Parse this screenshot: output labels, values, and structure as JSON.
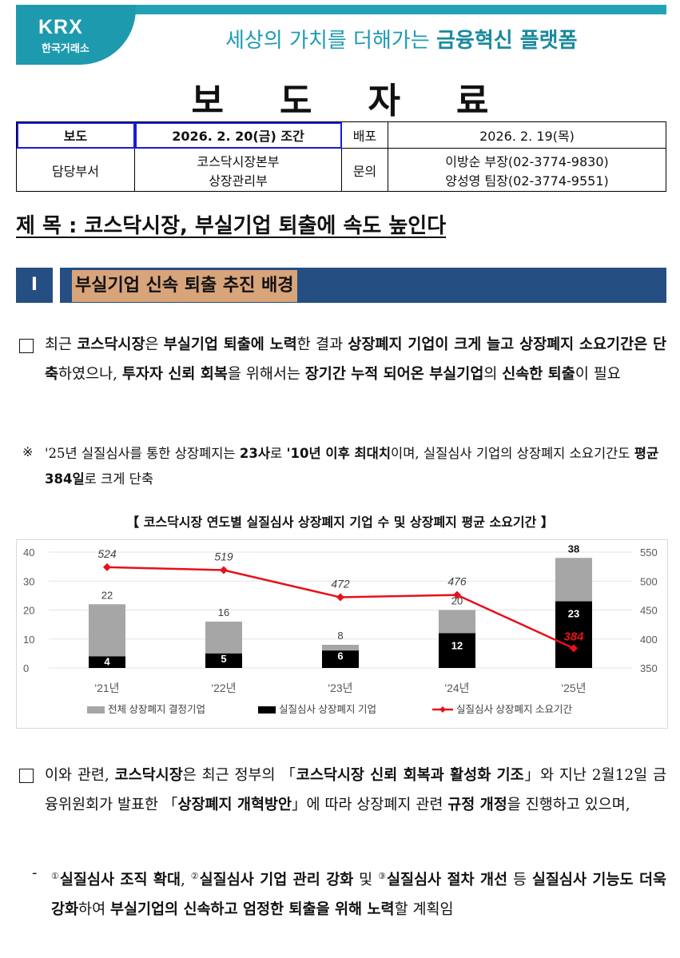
{
  "header": {
    "logo_main": "KRX",
    "logo_sub": "한국거래소",
    "slogan_plain": "세상의 가치를 더해가는 ",
    "slogan_bold": "금융혁신 플랫폼",
    "doc_title": "보도자료"
  },
  "info": {
    "release_label": "보도",
    "release_value": "2026. 2. 20(금) 조간",
    "dist_label": "배포",
    "dist_value": "2026. 2. 19(목)",
    "dept_label": "담당부서",
    "dept_line1": "코스닥시장본부",
    "dept_line2": "상장관리부",
    "contact_label": "문의",
    "contact_line1": "이방순 부장(02-3774-9830)",
    "contact_line2": "양성영 팀장(02-3774-9551)"
  },
  "main_title": "제 목 : 코스닥시장, 부실기업 퇴출에 속도 높인다",
  "section": {
    "num": "I",
    "label": "부실기업 신속 퇴출 추진 배경"
  },
  "para1": {
    "s1": "최근 ",
    "b1": "코스닥시장",
    "s2": "은 ",
    "b2": "부실기업 퇴출에 노력",
    "s3": "한 결과 ",
    "b3": "상장폐지 기업이 크게 늘고 상장폐지 소요기간은 단축",
    "s4": "하였으나, ",
    "b4": "투자자 신뢰 회복",
    "s5": "을 위해서는 ",
    "b5": "장기간 누적 되어온 부실기업",
    "s6": "의 ",
    "b6": "신속한 퇴출",
    "s7": "이 필요"
  },
  "note": {
    "mark": "※",
    "s1": "'25년 실질심사를 통한 상장폐지는 ",
    "b1": "23사",
    "s2": "로 ",
    "b2": "'10년 이후 최대치",
    "s3": "이며, 실질심사 기업의 상장폐지 소요기간도 ",
    "b3": "평균 384일",
    "s4": "로 크게 단축"
  },
  "chart_title": "【 코스닥시장 연도별 실질심사 상장폐지 기업 수 및 상장폐지 평균 소요기간 】",
  "chart_data": {
    "type": "bar",
    "categories": [
      "'21년",
      "'22년",
      "'23년",
      "'24년",
      "'25년"
    ],
    "series": [
      {
        "name": "전체 상장폐지 결정기업",
        "kind": "bar",
        "axis": "left",
        "color": "#a6a6a6",
        "values": [
          22,
          16,
          8,
          20,
          38
        ]
      },
      {
        "name": "실질심사 상장폐지 기업",
        "kind": "bar",
        "axis": "left",
        "color": "#000000",
        "values": [
          4,
          5,
          6,
          12,
          23
        ]
      },
      {
        "name": "실질심사 상장폐지 소요기간",
        "kind": "line",
        "axis": "right",
        "color": "#e8101a",
        "values": [
          524,
          519,
          472,
          476,
          384
        ]
      }
    ],
    "left_ticks": [
      0,
      10,
      20,
      30,
      40
    ],
    "right_ticks": [
      350,
      400,
      450,
      500,
      550
    ],
    "ylim": [
      0,
      40
    ],
    "y2lim": [
      350,
      550
    ],
    "legend": "bottom"
  },
  "para2": {
    "s1": "이와 관련, ",
    "b1": "코스닥시장",
    "s2": "은 최근 정부의 「",
    "b2": "코스닥시장 신뢰 회복과 활성화 기조",
    "s3": "」와 지난 2월12일 금융위원회가 발표한 「",
    "b3": "상장폐지 개혁방안",
    "s4": "」에 따라 상장폐지 관련 ",
    "b4": "규정 개정",
    "s5": "을 진행하고 있으며,"
  },
  "para3": {
    "dash": "-",
    "sup1": "①",
    "b1": "실질심사 조직 확대",
    "s1": ", ",
    "sup2": "②",
    "b2": "실질심사 기업 관리 강화",
    "s2": " 및 ",
    "sup3": "③",
    "b3": "실질심사 절차 개선",
    "s3": " 등 ",
    "b4": "실질심사 기능도 더욱 강화",
    "s4": "하여 ",
    "b5": "부실기업의 신속하고 엄정한 퇴출을 위해 노력",
    "s5": "할 계획임"
  }
}
